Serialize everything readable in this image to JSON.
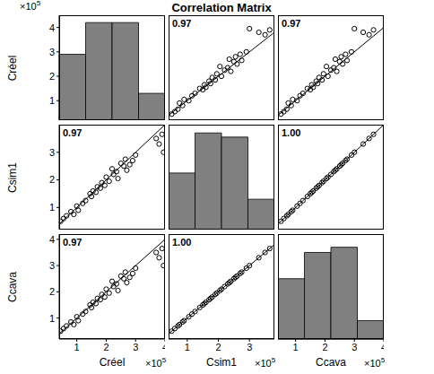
{
  "title": "Correlation Matrix",
  "scale_label": {
    "text": "×10",
    "exponent": 5
  },
  "chart_data": {
    "type": "scatter_matrix",
    "color": "#000000",
    "marker": "o",
    "variables": [
      {
        "name": "Créel",
        "color": "#808080",
        "values": [
          45000,
          55000,
          65000,
          80000,
          90000,
          100000,
          105000,
          120000,
          130000,
          145000,
          150000,
          155000,
          165000,
          170000,
          180000,
          185000,
          195000,
          200000,
          210000,
          220000,
          225000,
          235000,
          240000,
          250000,
          260000,
          265000,
          270000,
          280000,
          290000,
          300000,
          380000,
          390000,
          395000,
          370000
        ],
        "xlim": [
          40000,
          400000
        ],
        "xticks": [
          {
            "value": 100000,
            "label": "1"
          },
          {
            "value": 200000,
            "label": "2"
          },
          {
            "value": 300000,
            "label": "3"
          },
          {
            "value": 400000,
            "label": "4"
          }
        ],
        "ylim": [
          20000,
          450000
        ],
        "yticks": [
          {
            "value": 100000,
            "label": "1"
          },
          {
            "value": 200000,
            "label": "2"
          },
          {
            "value": 300000,
            "label": "3"
          },
          {
            "value": 400000,
            "label": "4"
          }
        ],
        "bins": [
          40000,
          130000,
          220000,
          310000,
          400000
        ],
        "hist_values": [
          290000,
          420000,
          420000,
          130000
        ]
      },
      {
        "name": "Csim1",
        "color": "#808080",
        "values": [
          50000,
          60000,
          70000,
          85000,
          75000,
          105000,
          90000,
          115000,
          125000,
          150000,
          140000,
          160000,
          155000,
          175000,
          170000,
          190000,
          180000,
          210000,
          195000,
          240000,
          220000,
          230000,
          205000,
          260000,
          250000,
          275000,
          235000,
          255000,
          270000,
          290000,
          330000,
          365000,
          300000,
          350000
        ],
        "xlim": [
          40000,
          380000
        ],
        "xticks": [
          {
            "value": 100000,
            "label": "1"
          },
          {
            "value": 200000,
            "label": "2"
          },
          {
            "value": 300000,
            "label": "3"
          }
        ],
        "ylim": [
          20000,
          400000
        ],
        "yticks": [
          {
            "value": 100000,
            "label": "1"
          },
          {
            "value": 200000,
            "label": "2"
          },
          {
            "value": 300000,
            "label": "3"
          }
        ],
        "bins": [
          40000,
          125000,
          210000,
          295000,
          380000
        ],
        "hist_values": [
          225000,
          370000,
          355000,
          130000
        ]
      },
      {
        "name": "Ccava",
        "color": "#808080",
        "values": [
          50000,
          60000,
          70000,
          85000,
          75000,
          105000,
          90000,
          115000,
          125000,
          150000,
          140000,
          160000,
          155000,
          175000,
          170000,
          190000,
          180000,
          210000,
          195000,
          240000,
          220000,
          230000,
          205000,
          260000,
          250000,
          275000,
          235000,
          255000,
          270000,
          290000,
          330000,
          365000,
          300000,
          350000
        ],
        "xlim": [
          40000,
          400000
        ],
        "xticks": [
          {
            "value": 100000,
            "label": "1"
          },
          {
            "value": 200000,
            "label": "2"
          },
          {
            "value": 300000,
            "label": "3"
          },
          {
            "value": 400000,
            "label": "4"
          }
        ],
        "ylim": [
          20000,
          420000
        ],
        "yticks": [
          {
            "value": 100000,
            "label": "1"
          },
          {
            "value": 200000,
            "label": "2"
          },
          {
            "value": 300000,
            "label": "3"
          },
          {
            "value": 400000,
            "label": "4"
          }
        ],
        "bins": [
          40000,
          130000,
          220000,
          310000,
          400000
        ],
        "hist_values": [
          250000,
          350000,
          370000,
          90000
        ]
      }
    ],
    "correlations": [
      [
        null,
        {
          "value": 0.97,
          "label": "0.97"
        },
        {
          "value": 0.97,
          "label": "0.97"
        }
      ],
      [
        {
          "value": 0.97,
          "label": "0.97"
        },
        null,
        {
          "value": 1,
          "label": "1.00"
        }
      ],
      [
        {
          "value": 0.97,
          "label": "0.97"
        },
        {
          "value": 1,
          "label": "1.00"
        },
        null
      ]
    ]
  }
}
